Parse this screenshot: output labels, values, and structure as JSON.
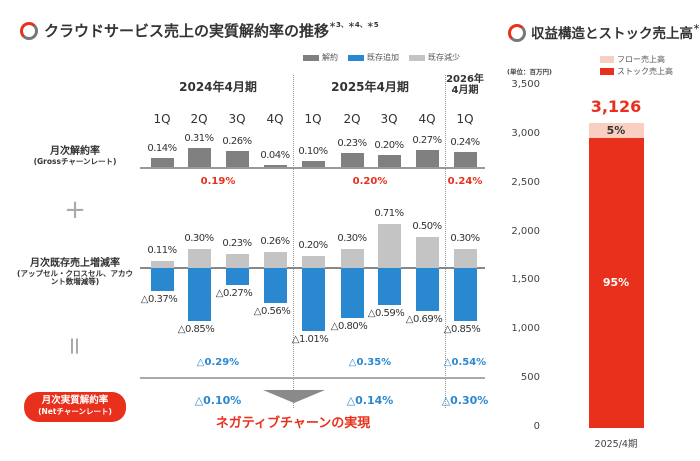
{
  "left": {
    "title": "クラウドサービス売上の実質解約率の推移",
    "title_notes": "＊3、＊4、＊5",
    "legend": [
      {
        "label": "解約",
        "color": "#808080"
      },
      {
        "label": "既存追加",
        "color": "#2a88d0"
      },
      {
        "label": "既存減少",
        "color": "#c4c4c4"
      }
    ],
    "periods": [
      "2024年4月期",
      "2025年4月期",
      "2026年\n4月期"
    ],
    "row_labels": {
      "gross": "月次解約率",
      "gross_sub": "(Grossチャーンレート)",
      "existing": "月次既存売上増減率",
      "existing_sub": "(アップセル・クロスセル、アカウント数増減等)",
      "net": "月次実質解約率",
      "net_sub": "(Netチャーンレート)",
      "plus": "+",
      "equals": "="
    },
    "callout": "ネガティブチャーンの実現",
    "colors": {
      "accent": "#e8301c",
      "blue": "#2a88d0",
      "gray": "#808080",
      "lightgray": "#c4c4c4"
    }
  },
  "chart_data": [
    {
      "type": "bar",
      "categories": [
        "1Q",
        "2Q",
        "3Q",
        "4Q",
        "1Q",
        "2Q",
        "3Q",
        "4Q",
        "1Q"
      ],
      "series": [
        {
          "name": "解約",
          "values": [
            0.14,
            0.31,
            0.26,
            0.04,
            0.1,
            0.23,
            0.2,
            0.27,
            0.24
          ],
          "labels": [
            "0.14%",
            "0.31%",
            "0.26%",
            "0.04%",
            "0.10%",
            "0.23%",
            "0.20%",
            "0.27%",
            "0.24%"
          ]
        },
        {
          "name": "既存減少",
          "values": [
            0.11,
            0.3,
            0.23,
            0.26,
            0.2,
            0.3,
            0.71,
            0.5,
            0.3
          ],
          "labels": [
            "0.11%",
            "0.30%",
            "0.23%",
            "0.26%",
            "0.20%",
            "0.30%",
            "0.71%",
            "0.50%",
            "0.30%"
          ]
        },
        {
          "name": "既存追加",
          "values": [
            -0.37,
            -0.85,
            -0.27,
            -0.56,
            -1.01,
            -0.8,
            -0.59,
            -0.69,
            -0.85
          ],
          "labels": [
            "△0.37%",
            "△0.85%",
            "△0.27%",
            "△0.56%",
            "△1.01%",
            "△0.80%",
            "△0.59%",
            "△0.69%",
            "△0.85%"
          ]
        }
      ],
      "period_summary": [
        {
          "period": "2024年4月期",
          "gross_avg": "0.19%",
          "existing_avg": "△0.29%",
          "net": "△0.10%"
        },
        {
          "period": "2025年4月期",
          "gross_avg": "0.20%",
          "existing_avg": "△0.35%",
          "net": "△0.14%"
        },
        {
          "period": "2026年4月期",
          "gross_avg": "0.24%",
          "existing_avg": "△0.54%",
          "net": "△0.30%"
        }
      ]
    },
    {
      "type": "bar",
      "title": "収益構造とストック売上高",
      "title_note": "＊6",
      "unit": "(単位：百万円)",
      "categories": [
        "2025/4期"
      ],
      "total_label": "3,126",
      "total": 3126,
      "series": [
        {
          "name": "ストック売上高",
          "share_pct": 95,
          "label": "95%",
          "color": "#e8301c"
        },
        {
          "name": "フロー売上高",
          "share_pct": 5,
          "label": "5%",
          "color": "#f8cfc0"
        }
      ],
      "yticks": [
        "0",
        "500",
        "1,000",
        "1,500",
        "2,000",
        "2,500",
        "3,000",
        "3,500"
      ],
      "ylim": [
        0,
        3500
      ]
    }
  ]
}
